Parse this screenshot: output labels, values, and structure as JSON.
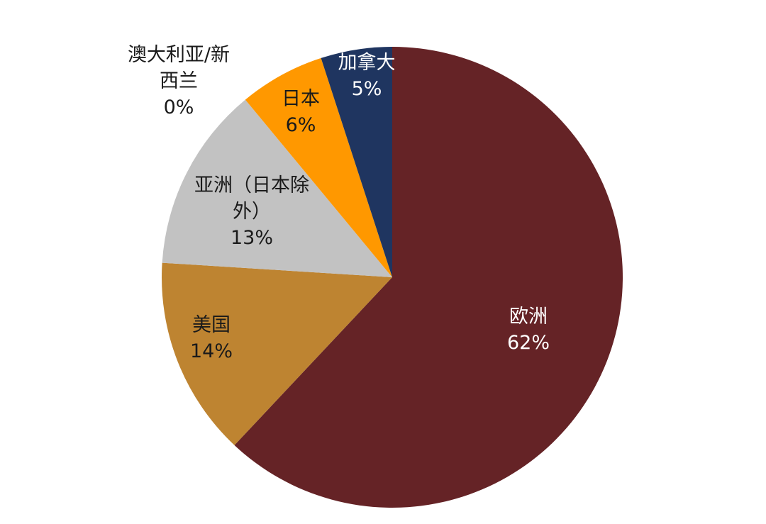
{
  "chart_data": {
    "type": "pie",
    "title": "",
    "start_angle_deg": 0,
    "direction": "clockwise",
    "slices": [
      {
        "name": "欧洲",
        "value": 62,
        "value_label": "62%",
        "color": "#652326",
        "label_color": "#ffffff",
        "name_lines": [
          "欧洲"
        ]
      },
      {
        "name": "美国",
        "value": 14,
        "value_label": "14%",
        "color": "#BE8431",
        "label_color": "#1a1a1a",
        "name_lines": [
          "美国"
        ]
      },
      {
        "name": "亚洲（日本除外）",
        "value": 13,
        "value_label": "13%",
        "color": "#C2C2C2",
        "label_color": "#1a1a1a",
        "name_lines": [
          "亚洲（日本除",
          "外）"
        ]
      },
      {
        "name": "日本",
        "value": 6,
        "value_label": "6%",
        "color": "#FF9800",
        "label_color": "#1a1a1a",
        "name_lines": [
          "日本"
        ]
      },
      {
        "name": "加拿大",
        "value": 5,
        "value_label": "5%",
        "color": "#1F3560",
        "label_color": "#ffffff",
        "name_lines": [
          "加拿大"
        ]
      },
      {
        "name": "澳大利亚/新西兰",
        "value": 0,
        "value_label": "0%",
        "color": "#7F7F7F",
        "label_color": "#1a1a1a",
        "name_lines": [
          "澳大利亚/新",
          "西兰"
        ]
      }
    ]
  }
}
